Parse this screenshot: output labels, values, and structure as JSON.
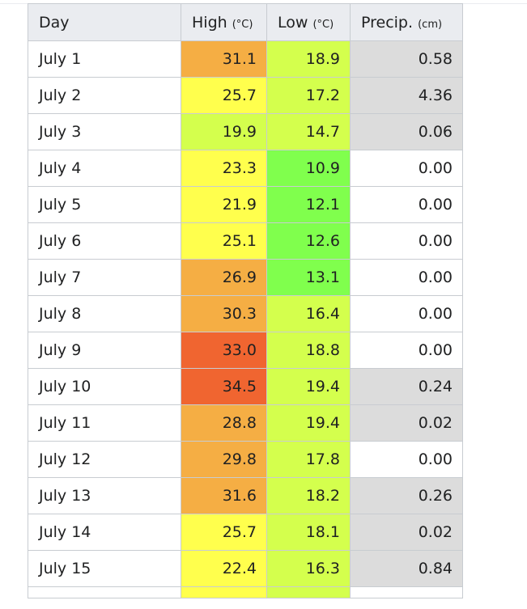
{
  "table": {
    "headers": [
      {
        "label": "Day",
        "unit": ""
      },
      {
        "label": "High",
        "unit": "(°C)"
      },
      {
        "label": "Low",
        "unit": "(°C)"
      },
      {
        "label": "Precip.",
        "unit": "(cm)"
      }
    ],
    "rows": [
      {
        "day": "July 1",
        "high": "31.1",
        "low": "18.9",
        "precip": "0.58"
      },
      {
        "day": "July 2",
        "high": "25.7",
        "low": "17.2",
        "precip": "4.36"
      },
      {
        "day": "July 3",
        "high": "19.9",
        "low": "14.7",
        "precip": "0.06"
      },
      {
        "day": "July 4",
        "high": "23.3",
        "low": "10.9",
        "precip": "0.00"
      },
      {
        "day": "July 5",
        "high": "21.9",
        "low": "12.1",
        "precip": "0.00"
      },
      {
        "day": "July 6",
        "high": "25.1",
        "low": "12.6",
        "precip": "0.00"
      },
      {
        "day": "July 7",
        "high": "26.9",
        "low": "13.1",
        "precip": "0.00"
      },
      {
        "day": "July 8",
        "high": "30.3",
        "low": "16.4",
        "precip": "0.00"
      },
      {
        "day": "July 9",
        "high": "33.0",
        "low": "18.8",
        "precip": "0.00"
      },
      {
        "day": "July 10",
        "high": "34.5",
        "low": "19.4",
        "precip": "0.24"
      },
      {
        "day": "July 11",
        "high": "28.8",
        "low": "19.4",
        "precip": "0.02"
      },
      {
        "day": "July 12",
        "high": "29.8",
        "low": "17.8",
        "precip": "0.00"
      },
      {
        "day": "July 13",
        "high": "31.6",
        "low": "18.2",
        "precip": "0.26"
      },
      {
        "day": "July 14",
        "high": "25.7",
        "low": "18.1",
        "precip": "0.02"
      },
      {
        "day": "July 15",
        "high": "22.4",
        "low": "16.3",
        "precip": "0.84"
      }
    ],
    "colors": {
      "link": "#3366cc",
      "header_bg": "#eaecf0",
      "border": "#c8ccd1",
      "high_hot": "#f06530",
      "high_warm": "#f5ae44",
      "high_mild": "#ffff4d",
      "high_cool": "#d4ff4d",
      "low_mild": "#d4ff4d",
      "low_cool": "#80ff4d",
      "precip_wet": "#dcdcdc",
      "precip_dry": "#ffffff"
    }
  }
}
